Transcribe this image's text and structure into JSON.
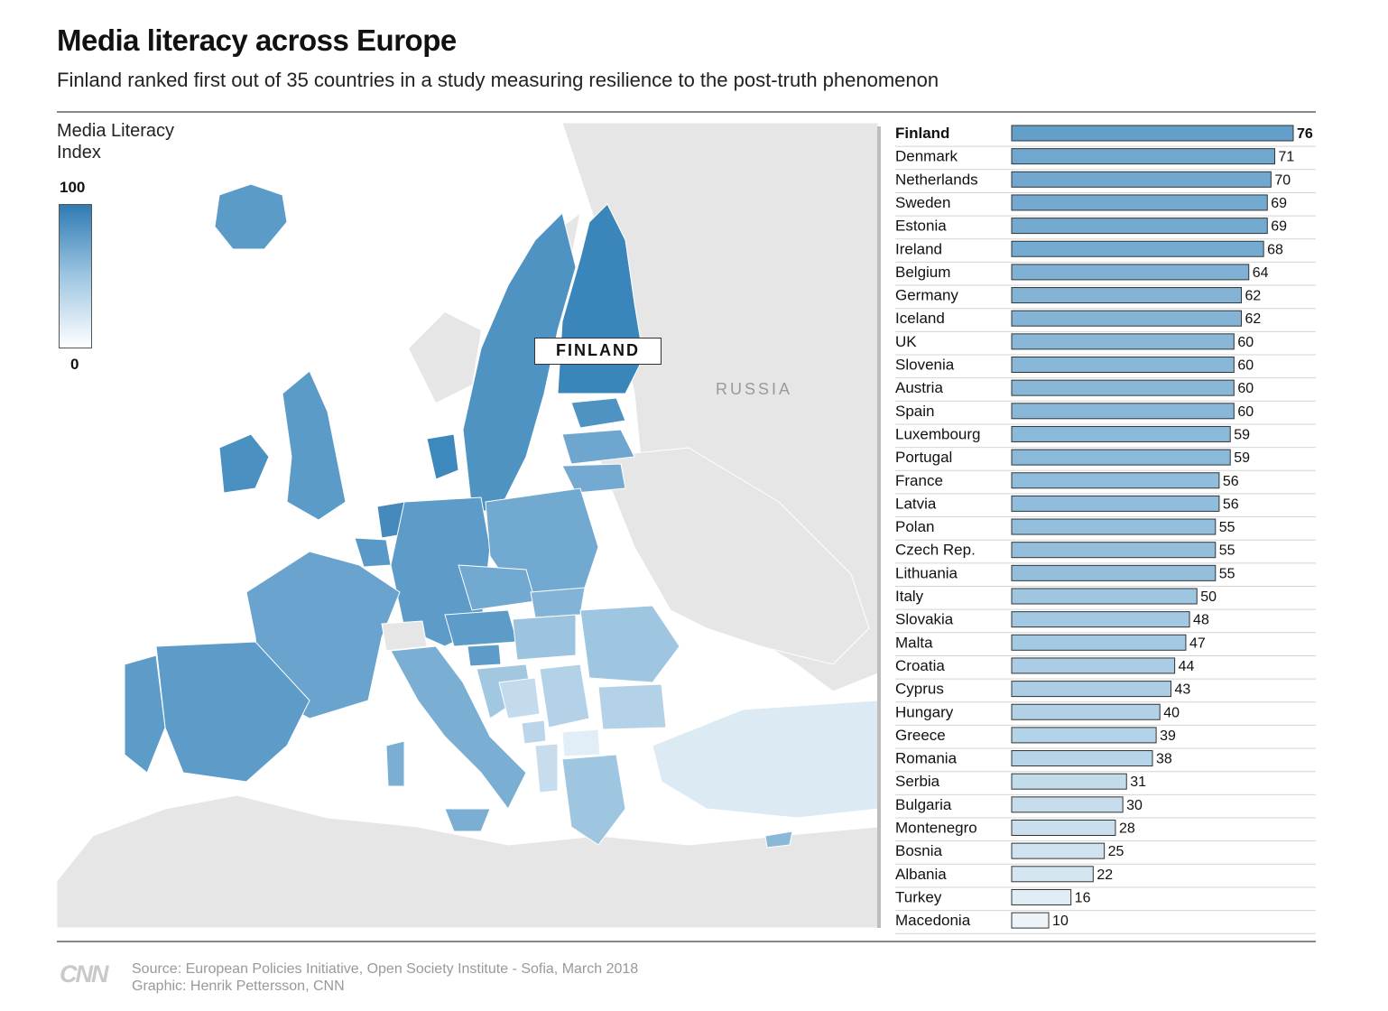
{
  "title": "Media literacy across Europe",
  "subtitle": "Finland ranked first out of 35 countries in a study measuring resilience to the post-truth phenomenon",
  "legend": {
    "title": "Media Literacy Index",
    "max_label": "100",
    "min_label": "0"
  },
  "map_labels": {
    "highlight": "FINLAND",
    "russia": "RUSSIA"
  },
  "colors": {
    "high": "#2f7bb4",
    "low": "#ffffff",
    "no_data": "#e6e6e6",
    "bar_stroke": "#333333"
  },
  "source_line": "Source: European Policies Initiative, Open Society Institute - Sofia, March 2018",
  "credit_line": "Graphic: Henrik Pettersson, CNN",
  "logo_text": "CNN",
  "chart_data": {
    "type": "bar",
    "orientation": "horizontal",
    "xlim": [
      0,
      100
    ],
    "highlight": "Finland",
    "categories": [
      "Finland",
      "Denmark",
      "Netherlands",
      "Sweden",
      "Estonia",
      "Ireland",
      "Belgium",
      "Germany",
      "Iceland",
      "UK",
      "Slovenia",
      "Austria",
      "Spain",
      "Luxembourg",
      "Portugal",
      "France",
      "Latvia",
      "Polan",
      "Czech Rep.",
      "Lithuania",
      "Italy",
      "Slovakia",
      "Malta",
      "Croatia",
      "Cyprus",
      "Hungary",
      "Greece",
      "Romania",
      "Serbia",
      "Bulgaria",
      "Montenegro",
      "Bosnia",
      "Albania",
      "Turkey",
      "Macedonia"
    ],
    "values": [
      76,
      71,
      70,
      69,
      69,
      68,
      64,
      62,
      62,
      60,
      60,
      60,
      60,
      59,
      59,
      56,
      56,
      55,
      55,
      55,
      50,
      48,
      47,
      44,
      43,
      40,
      39,
      38,
      31,
      30,
      28,
      25,
      22,
      16,
      10
    ]
  }
}
